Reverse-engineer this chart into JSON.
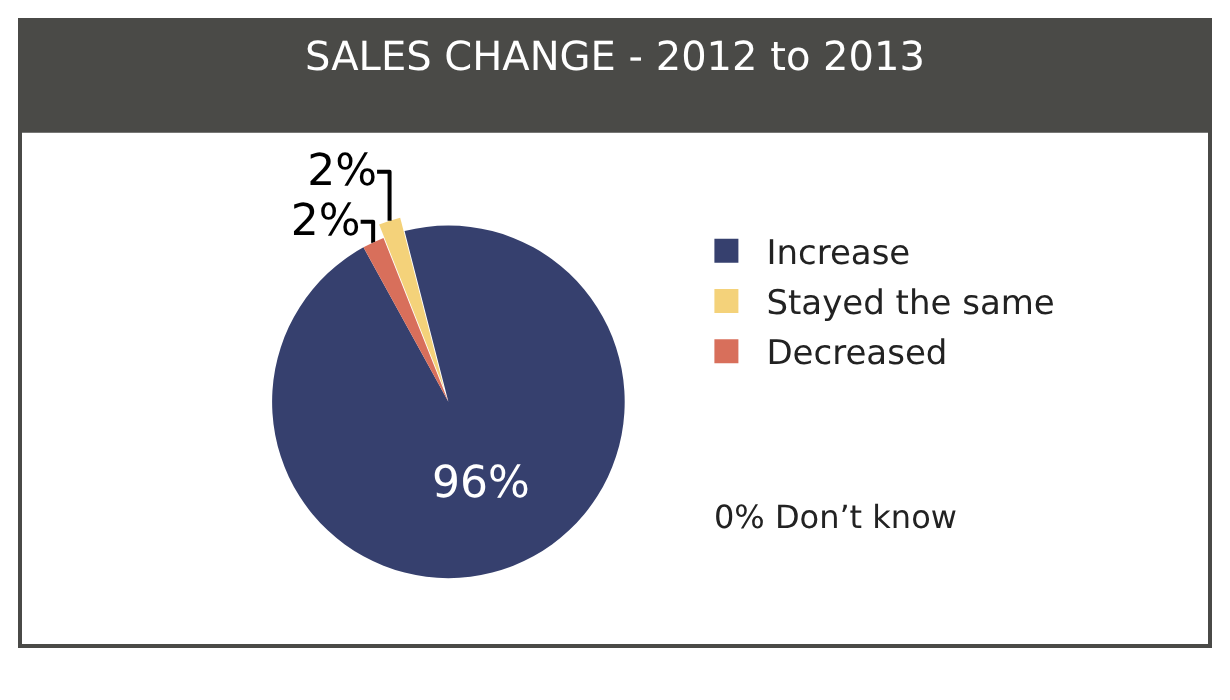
{
  "chart_data": {
    "type": "pie",
    "title": "SALES CHANGE - 2012 to 2013",
    "categories": [
      "Increase",
      "Stayed the same",
      "Decreased"
    ],
    "values": [
      96,
      2,
      2
    ],
    "colors": [
      "#36406e",
      "#f4d27a",
      "#d86f5b"
    ],
    "value_labels": [
      "96%",
      "2%",
      "2%"
    ],
    "legend": "right",
    "annotations": [
      "0% Don’t know"
    ]
  }
}
